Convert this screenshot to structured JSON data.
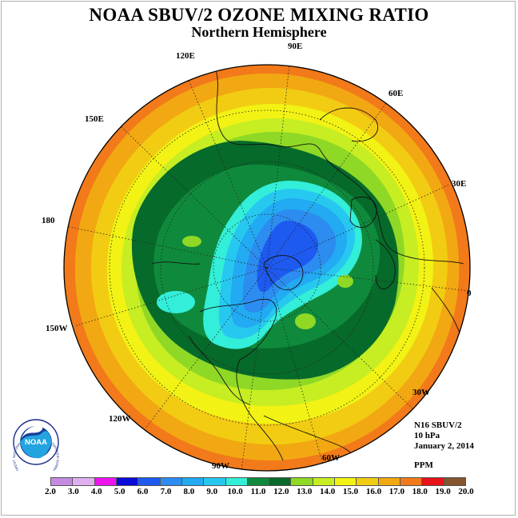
{
  "title": "NOAA SBUV/2 OZONE MIXING RATIO",
  "subtitle": "Northern Hemisphere",
  "info": {
    "instrument": "N16 SBUV/2",
    "pressure": "10 hPa",
    "date": "January 2, 2014",
    "units": "PPM"
  },
  "longitude_labels": [
    "90E",
    "120E",
    "60E",
    "150E",
    "30E",
    "180",
    "0",
    "150W",
    "30W",
    "120W",
    "60W",
    "90W"
  ],
  "colorbar": {
    "ticks": [
      "2.0",
      "3.0",
      "4.0",
      "5.0",
      "6.0",
      "7.0",
      "8.0",
      "9.0",
      "10.0",
      "11.0",
      "12.0",
      "13.0",
      "14.0",
      "15.0",
      "16.0",
      "17.0",
      "18.0",
      "19.0",
      "20.0"
    ],
    "colors": [
      "#c58be3",
      "#deb0f0",
      "#ee14ee",
      "#0a0ad8",
      "#1e5af0",
      "#2c8cf0",
      "#22aaf2",
      "#26c8f0",
      "#33eed9",
      "#0f8a3c",
      "#066a2a",
      "#8fd826",
      "#c6ee22",
      "#f2f214",
      "#f2cc12",
      "#f2a812",
      "#f27a1a",
      "#e8121a",
      "#86542e"
    ]
  },
  "logo": {
    "text": "NOAA",
    "ring_text": "NATIONAL OCEANIC AND ATMOSPHERIC ADMINISTRATION · U.S. DEPARTMENT OF COMMERCE ·"
  }
}
